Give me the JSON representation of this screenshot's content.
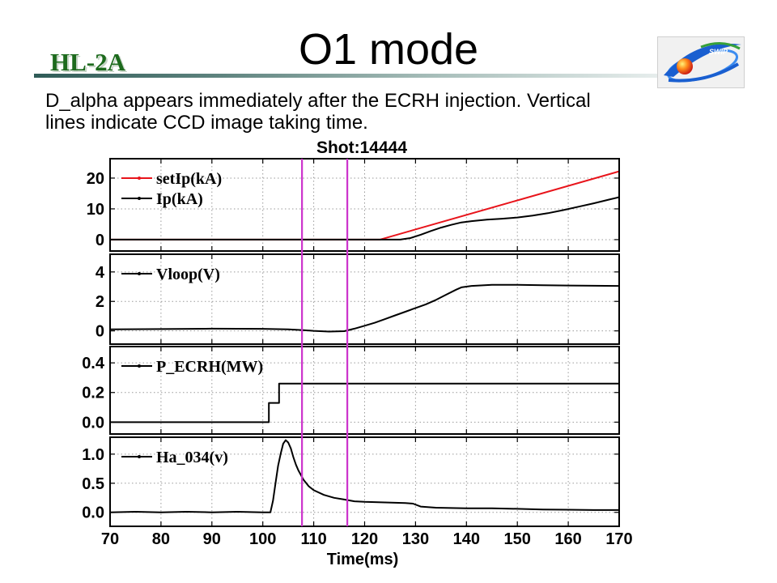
{
  "header": {
    "org_label": "HL-2A",
    "title": "O1 mode",
    "logo_text": "SWIP"
  },
  "description": {
    "lines": [
      "D_alpha appears immediately after the ECRH injection. Vertical",
      "lines indicate CCD image taking time."
    ]
  },
  "colors": {
    "org_label": "#1d6a1d",
    "logo_blue": "#1a5fd0",
    "logo_ball": "#e0401a"
  },
  "chart_data": {
    "type": "line",
    "title": "Shot:14444",
    "xlabel": "Time(ms)",
    "xlim": [
      70,
      170
    ],
    "xticks": [
      70,
      80,
      90,
      100,
      110,
      120,
      130,
      140,
      150,
      160,
      170
    ],
    "xtick_labels": [
      "70",
      "80",
      "90",
      "100",
      "110",
      "120",
      "130",
      "140",
      "150",
      "160",
      "170"
    ],
    "grid": true,
    "legend_placement": "top-left",
    "vertical_markers": [
      {
        "x": 107.7,
        "color": "#cc33cc"
      },
      {
        "x": 116.6,
        "color": "#cc33cc"
      }
    ],
    "panels": [
      {
        "ylim": [
          -3.7,
          26.3
        ],
        "yticks": [
          0,
          10,
          20
        ],
        "ytick_labels": [
          "0",
          "10",
          "20"
        ],
        "series": [
          {
            "name": "setIp(kA)",
            "color": "#e8141b",
            "x": [
              70,
              123,
              170
            ],
            "y": [
              0,
              0,
              22.2
            ]
          },
          {
            "name": "Ip(kA)",
            "color": "#000000",
            "x": [
              70,
              127,
              129,
              131,
              133,
              135,
              137,
              139,
              141,
              144,
              147,
              150,
              153,
              156,
              159,
              162,
              165,
              168,
              170
            ],
            "y": [
              0,
              0,
              0.5,
              1.6,
              2.8,
              3.9,
              4.8,
              5.6,
              6.0,
              6.5,
              6.8,
              7.2,
              7.8,
              8.6,
              9.6,
              10.7,
              11.8,
              13.0,
              13.8
            ]
          }
        ]
      },
      {
        "ylim": [
          -0.9,
          5.2
        ],
        "yticks": [
          0,
          2,
          4
        ],
        "ytick_labels": [
          "0",
          "2",
          "4"
        ],
        "series": [
          {
            "name": "Vloop(V)",
            "color": "#000000",
            "x": [
              70,
              80,
              90,
              100,
              105,
              108,
              110,
              113,
              116,
              118,
              120,
              122,
              124,
              126,
              128,
              130,
              132,
              134,
              136,
              138,
              139,
              141,
              145,
              150,
              155,
              160,
              165,
              170
            ],
            "y": [
              0.1,
              0.12,
              0.15,
              0.14,
              0.1,
              0.05,
              0.0,
              -0.05,
              -0.02,
              0.15,
              0.35,
              0.55,
              0.8,
              1.05,
              1.3,
              1.55,
              1.8,
              2.1,
              2.45,
              2.8,
              2.95,
              3.05,
              3.12,
              3.12,
              3.1,
              3.08,
              3.06,
              3.05
            ]
          }
        ]
      },
      {
        "ylim": [
          -0.08,
          0.51
        ],
        "yticks": [
          0,
          0.2,
          0.4
        ],
        "ytick_labels": [
          "0.0",
          "0.2",
          "0.4"
        ],
        "series": [
          {
            "name": "P_ECRH(MW)",
            "color": "#000000",
            "x": [
              70,
              101.2,
              101.2,
              103.2,
              103.2,
              170
            ],
            "y": [
              0,
              0,
              0.13,
              0.13,
              0.26,
              0.26
            ]
          }
        ]
      },
      {
        "ylim": [
          -0.24,
          1.29
        ],
        "yticks": [
          0,
          0.5,
          1.0
        ],
        "ytick_labels": [
          "0.0",
          "0.5",
          "1.0"
        ],
        "series": [
          {
            "name": "Ha_034(v)",
            "color": "#000000",
            "x": [
              70,
              75,
              80,
              85,
              90,
              95,
              100,
              101.5,
              102,
              102.5,
              103,
              103.5,
              104,
              104.5,
              105,
              105.5,
              106,
              106.5,
              107,
              108,
              109,
              110,
              112,
              114,
              116,
              118,
              120,
              124,
              128,
              129.5,
              131,
              134,
              140,
              145,
              150,
              155,
              160,
              165,
              170
            ],
            "y": [
              0.0,
              0.01,
              0.0,
              0.01,
              0.0,
              0.01,
              0.0,
              0.0,
              0.2,
              0.5,
              0.8,
              1.0,
              1.18,
              1.24,
              1.2,
              1.1,
              0.95,
              0.82,
              0.72,
              0.56,
              0.45,
              0.38,
              0.3,
              0.25,
              0.22,
              0.19,
              0.18,
              0.17,
              0.16,
              0.15,
              0.1,
              0.08,
              0.07,
              0.07,
              0.06,
              0.05,
              0.045,
              0.04,
              0.04
            ]
          }
        ]
      }
    ]
  }
}
